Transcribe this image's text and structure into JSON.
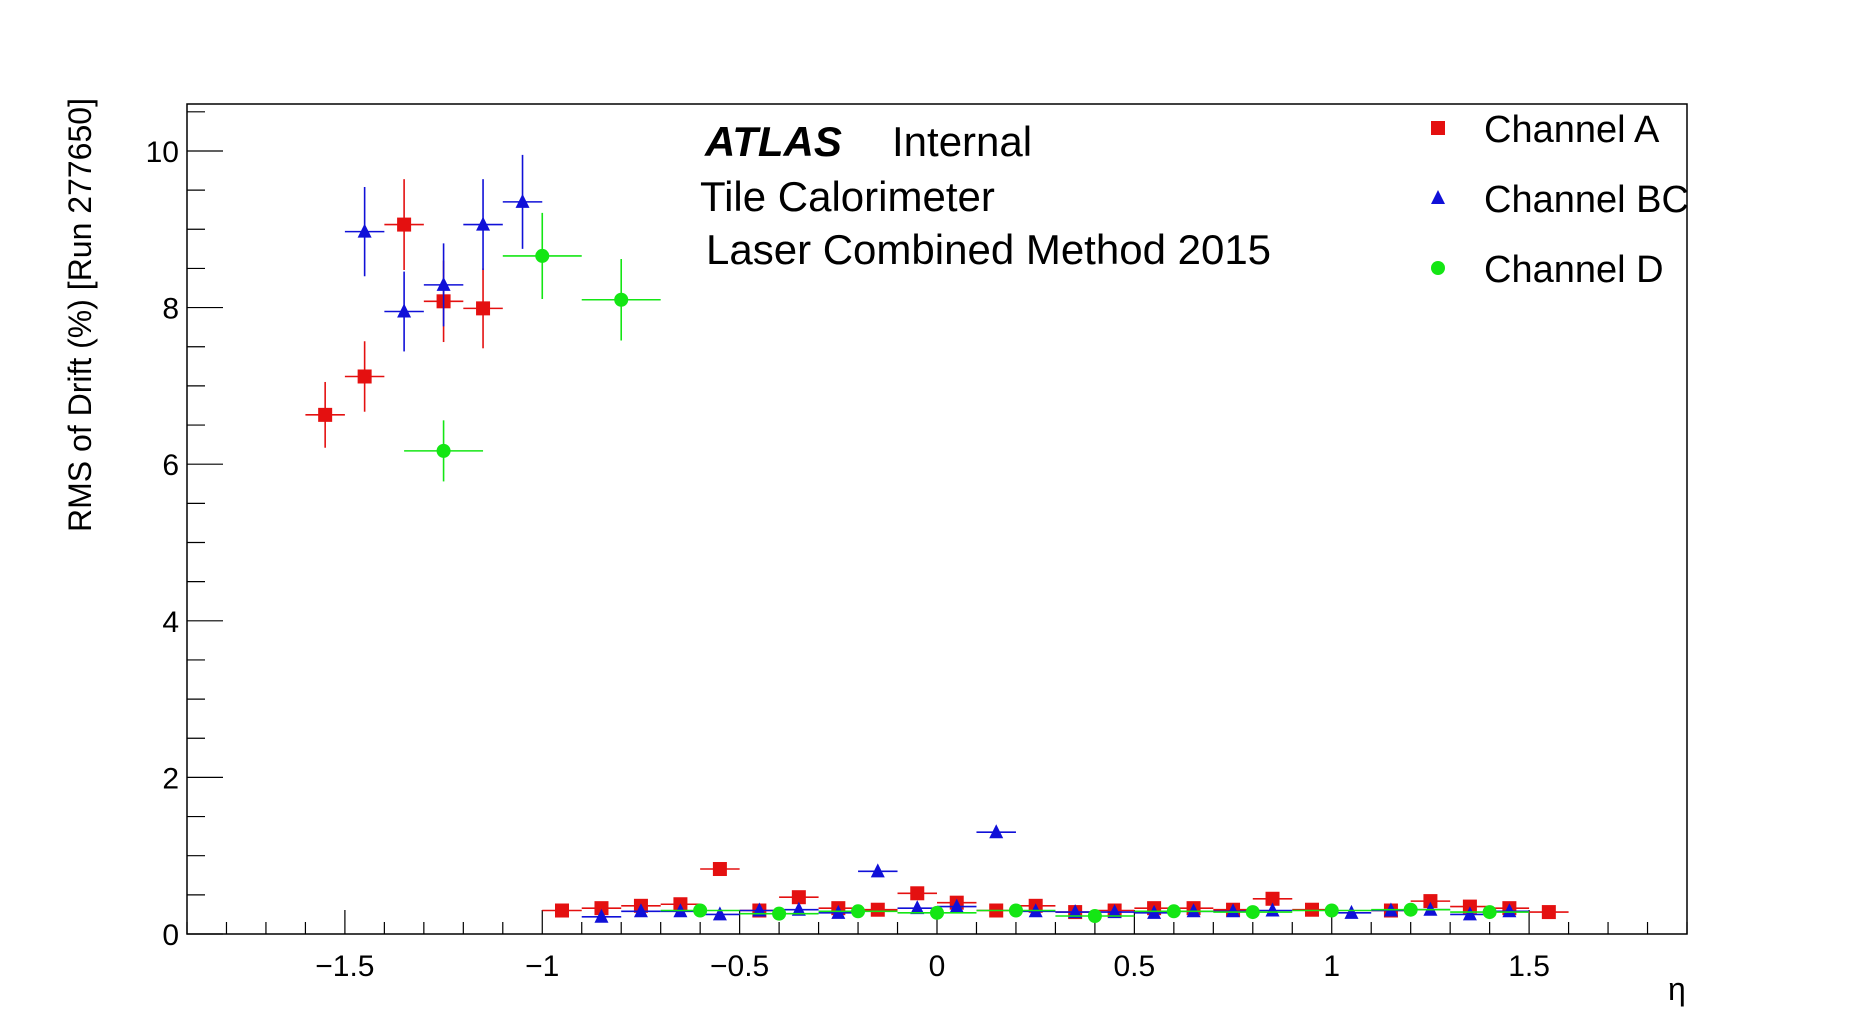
{
  "chart_data": {
    "type": "scatter",
    "xlabel": "η",
    "ylabel": "RMS of Drift (%) [Run 277650]",
    "xlim": [
      -1.9,
      1.9
    ],
    "ylim": [
      0,
      10.6
    ],
    "x_ticks": [
      -1.5,
      -1,
      -0.5,
      0,
      0.5,
      1,
      1.5
    ],
    "x_tick_labels": [
      "−1.5",
      "−1",
      "−0.5",
      "0",
      "0.5",
      "1",
      "1.5"
    ],
    "y_ticks": [
      0,
      2,
      4,
      6,
      8,
      10
    ],
    "y_tick_labels": [
      "0",
      "2",
      "4",
      "6",
      "8",
      "10"
    ],
    "grid": false,
    "legend_position": "top-right",
    "annotations": {
      "atlas": "ATLAS",
      "internal": "Internal",
      "line2": "Tile Calorimeter",
      "line3": "Laser Combined Method 2015"
    },
    "series": [
      {
        "name": "Channel A",
        "color": "#e41010",
        "marker": "square",
        "points": [
          {
            "x": -1.55,
            "y": 6.63,
            "xerr": 0.05,
            "yerr": 0.42
          },
          {
            "x": -1.45,
            "y": 7.12,
            "xerr": 0.05,
            "yerr": 0.45
          },
          {
            "x": -1.35,
            "y": 9.06,
            "xerr": 0.05,
            "yerr": 0.58
          },
          {
            "x": -1.25,
            "y": 8.08,
            "xerr": 0.05,
            "yerr": 0.52
          },
          {
            "x": -1.15,
            "y": 7.99,
            "xerr": 0.05,
            "yerr": 0.51
          },
          {
            "x": -0.95,
            "y": 0.3,
            "xerr": 0.05,
            "yerr": 0.02
          },
          {
            "x": -0.85,
            "y": 0.33,
            "xerr": 0.05,
            "yerr": 0.02
          },
          {
            "x": -0.75,
            "y": 0.36,
            "xerr": 0.05,
            "yerr": 0.02
          },
          {
            "x": -0.65,
            "y": 0.38,
            "xerr": 0.05,
            "yerr": 0.02
          },
          {
            "x": -0.55,
            "y": 0.83,
            "xerr": 0.05,
            "yerr": 0.03
          },
          {
            "x": -0.45,
            "y": 0.3,
            "xerr": 0.05,
            "yerr": 0.02
          },
          {
            "x": -0.35,
            "y": 0.47,
            "xerr": 0.05,
            "yerr": 0.02
          },
          {
            "x": -0.25,
            "y": 0.33,
            "xerr": 0.05,
            "yerr": 0.02
          },
          {
            "x": -0.15,
            "y": 0.31,
            "xerr": 0.05,
            "yerr": 0.02
          },
          {
            "x": -0.05,
            "y": 0.52,
            "xerr": 0.05,
            "yerr": 0.02
          },
          {
            "x": 0.05,
            "y": 0.4,
            "xerr": 0.05,
            "yerr": 0.02
          },
          {
            "x": 0.15,
            "y": 0.3,
            "xerr": 0.05,
            "yerr": 0.02
          },
          {
            "x": 0.25,
            "y": 0.36,
            "xerr": 0.05,
            "yerr": 0.02
          },
          {
            "x": 0.35,
            "y": 0.28,
            "xerr": 0.05,
            "yerr": 0.02
          },
          {
            "x": 0.45,
            "y": 0.3,
            "xerr": 0.05,
            "yerr": 0.02
          },
          {
            "x": 0.55,
            "y": 0.33,
            "xerr": 0.05,
            "yerr": 0.02
          },
          {
            "x": 0.65,
            "y": 0.33,
            "xerr": 0.05,
            "yerr": 0.02
          },
          {
            "x": 0.75,
            "y": 0.31,
            "xerr": 0.05,
            "yerr": 0.02
          },
          {
            "x": 0.85,
            "y": 0.45,
            "xerr": 0.05,
            "yerr": 0.02
          },
          {
            "x": 0.95,
            "y": 0.31,
            "xerr": 0.05,
            "yerr": 0.02
          },
          {
            "x": 1.15,
            "y": 0.3,
            "xerr": 0.05,
            "yerr": 0.02
          },
          {
            "x": 1.25,
            "y": 0.42,
            "xerr": 0.05,
            "yerr": 0.02
          },
          {
            "x": 1.35,
            "y": 0.35,
            "xerr": 0.05,
            "yerr": 0.02
          },
          {
            "x": 1.45,
            "y": 0.33,
            "xerr": 0.05,
            "yerr": 0.02
          },
          {
            "x": 1.55,
            "y": 0.28,
            "xerr": 0.05,
            "yerr": 0.02
          }
        ]
      },
      {
        "name": "Channel BC",
        "color": "#1010d8",
        "marker": "triangle",
        "points": [
          {
            "x": -1.45,
            "y": 8.97,
            "xerr": 0.05,
            "yerr": 0.57
          },
          {
            "x": -1.35,
            "y": 7.95,
            "xerr": 0.05,
            "yerr": 0.51
          },
          {
            "x": -1.25,
            "y": 8.29,
            "xerr": 0.05,
            "yerr": 0.53
          },
          {
            "x": -1.15,
            "y": 9.06,
            "xerr": 0.05,
            "yerr": 0.58
          },
          {
            "x": -1.05,
            "y": 9.35,
            "xerr": 0.05,
            "yerr": 0.6
          },
          {
            "x": -0.85,
            "y": 0.22,
            "xerr": 0.05,
            "yerr": 0.02
          },
          {
            "x": -0.75,
            "y": 0.29,
            "xerr": 0.05,
            "yerr": 0.02
          },
          {
            "x": -0.65,
            "y": 0.29,
            "xerr": 0.05,
            "yerr": 0.02
          },
          {
            "x": -0.55,
            "y": 0.25,
            "xerr": 0.05,
            "yerr": 0.02
          },
          {
            "x": -0.45,
            "y": 0.3,
            "xerr": 0.05,
            "yerr": 0.02
          },
          {
            "x": -0.35,
            "y": 0.31,
            "xerr": 0.05,
            "yerr": 0.02
          },
          {
            "x": -0.25,
            "y": 0.27,
            "xerr": 0.05,
            "yerr": 0.02
          },
          {
            "x": -0.15,
            "y": 0.8,
            "xerr": 0.05,
            "yerr": 0.03
          },
          {
            "x": -0.05,
            "y": 0.33,
            "xerr": 0.05,
            "yerr": 0.02
          },
          {
            "x": 0.05,
            "y": 0.35,
            "xerr": 0.05,
            "yerr": 0.02
          },
          {
            "x": 0.15,
            "y": 1.3,
            "xerr": 0.05,
            "yerr": 0.05
          },
          {
            "x": 0.25,
            "y": 0.29,
            "xerr": 0.05,
            "yerr": 0.02
          },
          {
            "x": 0.35,
            "y": 0.28,
            "xerr": 0.05,
            "yerr": 0.02
          },
          {
            "x": 0.45,
            "y": 0.28,
            "xerr": 0.05,
            "yerr": 0.02
          },
          {
            "x": 0.55,
            "y": 0.27,
            "xerr": 0.05,
            "yerr": 0.02
          },
          {
            "x": 0.65,
            "y": 0.29,
            "xerr": 0.05,
            "yerr": 0.02
          },
          {
            "x": 0.75,
            "y": 0.29,
            "xerr": 0.05,
            "yerr": 0.02
          },
          {
            "x": 0.85,
            "y": 0.3,
            "xerr": 0.05,
            "yerr": 0.02
          },
          {
            "x": 1.05,
            "y": 0.27,
            "xerr": 0.05,
            "yerr": 0.02
          },
          {
            "x": 1.15,
            "y": 0.3,
            "xerr": 0.05,
            "yerr": 0.02
          },
          {
            "x": 1.25,
            "y": 0.31,
            "xerr": 0.05,
            "yerr": 0.02
          },
          {
            "x": 1.35,
            "y": 0.25,
            "xerr": 0.05,
            "yerr": 0.02
          },
          {
            "x": 1.45,
            "y": 0.29,
            "xerr": 0.05,
            "yerr": 0.02
          }
        ]
      },
      {
        "name": "Channel D",
        "color": "#14e614",
        "marker": "circle",
        "points": [
          {
            "x": -1.25,
            "y": 6.17,
            "xerr": 0.1,
            "yerr": 0.39
          },
          {
            "x": -1.0,
            "y": 8.66,
            "xerr": 0.1,
            "yerr": 0.55
          },
          {
            "x": -0.8,
            "y": 8.1,
            "xerr": 0.1,
            "yerr": 0.52
          },
          {
            "x": -0.6,
            "y": 0.3,
            "xerr": 0.1,
            "yerr": 0.02
          },
          {
            "x": -0.4,
            "y": 0.26,
            "xerr": 0.1,
            "yerr": 0.02
          },
          {
            "x": -0.2,
            "y": 0.29,
            "xerr": 0.1,
            "yerr": 0.02
          },
          {
            "x": 0.0,
            "y": 0.27,
            "xerr": 0.1,
            "yerr": 0.02
          },
          {
            "x": 0.2,
            "y": 0.3,
            "xerr": 0.1,
            "yerr": 0.02
          },
          {
            "x": 0.4,
            "y": 0.23,
            "xerr": 0.1,
            "yerr": 0.02
          },
          {
            "x": 0.6,
            "y": 0.29,
            "xerr": 0.1,
            "yerr": 0.02
          },
          {
            "x": 0.8,
            "y": 0.28,
            "xerr": 0.1,
            "yerr": 0.02
          },
          {
            "x": 1.0,
            "y": 0.3,
            "xerr": 0.1,
            "yerr": 0.02
          },
          {
            "x": 1.2,
            "y": 0.31,
            "xerr": 0.1,
            "yerr": 0.02
          },
          {
            "x": 1.4,
            "y": 0.28,
            "xerr": 0.1,
            "yerr": 0.02
          }
        ]
      }
    ]
  }
}
